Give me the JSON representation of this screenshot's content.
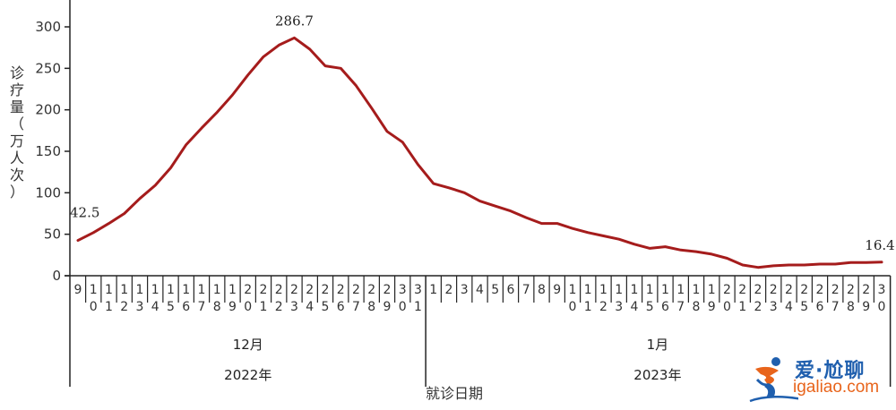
{
  "chart_data": {
    "type": "line",
    "title": "",
    "xlabel": "就诊日期",
    "ylabel": "诊疗量（万人次）",
    "ylabel_chars": [
      "诊",
      "疗",
      "量",
      "（",
      "万",
      "人",
      "次",
      "）"
    ],
    "ylim": [
      0,
      330
    ],
    "yticks": [
      0,
      50,
      100,
      150,
      200,
      250,
      300
    ],
    "grid": false,
    "legend": null,
    "line_color": "#a51c1c",
    "groups": [
      {
        "month": "12月",
        "year": "2022年",
        "days": [
          "9",
          "10",
          "11",
          "12",
          "13",
          "14",
          "15",
          "16",
          "17",
          "18",
          "19",
          "20",
          "21",
          "22",
          "23",
          "24",
          "25",
          "26",
          "27",
          "28",
          "29",
          "30",
          "31"
        ]
      },
      {
        "month": "1月",
        "year": "2023年",
        "days": [
          "1",
          "2",
          "3",
          "4",
          "5",
          "6",
          "7",
          "8",
          "9",
          "10",
          "11",
          "12",
          "13",
          "14",
          "15",
          "16",
          "17",
          "18",
          "19",
          "20",
          "21",
          "22",
          "23",
          "24",
          "25",
          "26",
          "27",
          "28",
          "29",
          "30"
        ]
      }
    ],
    "x": [
      "2022-12-09",
      "2022-12-10",
      "2022-12-11",
      "2022-12-12",
      "2022-12-13",
      "2022-12-14",
      "2022-12-15",
      "2022-12-16",
      "2022-12-17",
      "2022-12-18",
      "2022-12-19",
      "2022-12-20",
      "2022-12-21",
      "2022-12-22",
      "2022-12-23",
      "2022-12-24",
      "2022-12-25",
      "2022-12-26",
      "2022-12-27",
      "2022-12-28",
      "2022-12-29",
      "2022-12-30",
      "2022-12-31",
      "2023-01-01",
      "2023-01-02",
      "2023-01-03",
      "2023-01-04",
      "2023-01-05",
      "2023-01-06",
      "2023-01-07",
      "2023-01-08",
      "2023-01-09",
      "2023-01-10",
      "2023-01-11",
      "2023-01-12",
      "2023-01-13",
      "2023-01-14",
      "2023-01-15",
      "2023-01-16",
      "2023-01-17",
      "2023-01-18",
      "2023-01-19",
      "2023-01-20",
      "2023-01-21",
      "2023-01-22",
      "2023-01-23",
      "2023-01-24",
      "2023-01-25",
      "2023-01-26",
      "2023-01-27",
      "2023-01-28",
      "2023-01-29",
      "2023-01-30"
    ],
    "series": [
      {
        "name": "诊疗量",
        "values": [
          42.5,
          52,
          63,
          75,
          93,
          109,
          130,
          158,
          178,
          197,
          218,
          242,
          264,
          278,
          286.7,
          273,
          253,
          250,
          229,
          202,
          174,
          161,
          134,
          111,
          106,
          100,
          90,
          84,
          78,
          70,
          63,
          63,
          57,
          52,
          48,
          44,
          38,
          33,
          35,
          31,
          29,
          26,
          21,
          13,
          10,
          12,
          13,
          13,
          14,
          14,
          16,
          16,
          16.4
        ]
      }
    ],
    "annotations": [
      {
        "index": 0,
        "text": "42.5"
      },
      {
        "index": 14,
        "text": "286.7"
      },
      {
        "index": 52,
        "text": "16.4"
      }
    ]
  },
  "watermark": {
    "cn": "爱·尬聊",
    "en": "igaliao.com"
  }
}
